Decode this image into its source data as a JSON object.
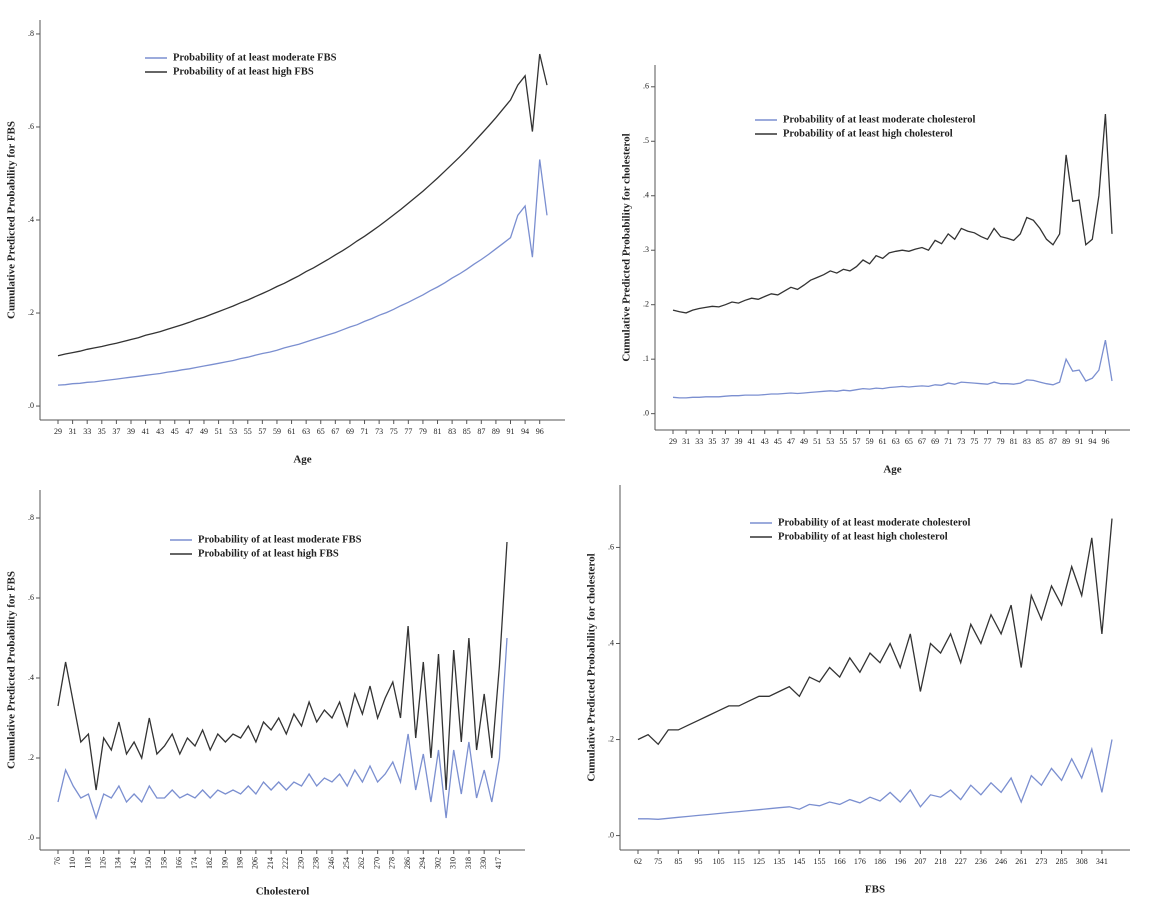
{
  "chart_data": [
    {
      "type": "line",
      "x_label": "Age",
      "y_label": "Cumulative Predicted Probability for FBS",
      "categories": [
        "29",
        null,
        "31",
        null,
        "33",
        null,
        "35",
        null,
        "37",
        null,
        "39",
        null,
        "41",
        null,
        "43",
        null,
        "45",
        null,
        "47",
        null,
        "49",
        null,
        "51",
        null,
        "53",
        null,
        "55",
        null,
        "57",
        null,
        "59",
        null,
        "61",
        null,
        "63",
        null,
        "65",
        null,
        "67",
        null,
        "69",
        null,
        "71",
        null,
        "73",
        null,
        "75",
        null,
        "77",
        null,
        "79",
        null,
        "81",
        null,
        "83",
        null,
        "85",
        null,
        "87",
        null,
        "89",
        null,
        "91",
        null,
        "94",
        null,
        "96",
        null
      ],
      "series": [
        {
          "name": "Probability of at least moderate FBS",
          "color": "#7b8fd0",
          "values": [
            0.045,
            0.046,
            0.048,
            0.049,
            0.051,
            0.052,
            0.054,
            0.056,
            0.058,
            0.06,
            0.062,
            0.064,
            0.066,
            0.068,
            0.07,
            0.073,
            0.075,
            0.078,
            0.08,
            0.083,
            0.086,
            0.089,
            0.092,
            0.095,
            0.098,
            0.102,
            0.105,
            0.109,
            0.113,
            0.116,
            0.12,
            0.125,
            0.129,
            0.133,
            0.138,
            0.143,
            0.148,
            0.153,
            0.158,
            0.164,
            0.17,
            0.175,
            0.182,
            0.188,
            0.195,
            0.201,
            0.208,
            0.216,
            0.223,
            0.231,
            0.239,
            0.248,
            0.256,
            0.265,
            0.275,
            0.284,
            0.294,
            0.305,
            0.315,
            0.326,
            0.338,
            0.35,
            0.362,
            0.41,
            0.43,
            0.32,
            0.53,
            0.41
          ]
        },
        {
          "name": "Probability of at least high FBS",
          "color": "#333333",
          "values": [
            0.108,
            0.112,
            0.115,
            0.118,
            0.122,
            0.125,
            0.128,
            0.132,
            0.135,
            0.139,
            0.143,
            0.147,
            0.152,
            0.156,
            0.16,
            0.165,
            0.17,
            0.175,
            0.18,
            0.186,
            0.191,
            0.197,
            0.203,
            0.209,
            0.215,
            0.222,
            0.228,
            0.235,
            0.242,
            0.249,
            0.257,
            0.264,
            0.272,
            0.28,
            0.289,
            0.297,
            0.306,
            0.315,
            0.325,
            0.334,
            0.344,
            0.355,
            0.365,
            0.376,
            0.387,
            0.399,
            0.411,
            0.423,
            0.436,
            0.449,
            0.462,
            0.476,
            0.49,
            0.505,
            0.52,
            0.535,
            0.551,
            0.568,
            0.585,
            0.602,
            0.62,
            0.639,
            0.658,
            0.69,
            0.71,
            0.59,
            0.757,
            0.69
          ]
        }
      ],
      "ylim": [
        -0.03,
        0.83
      ],
      "yticks": [
        {
          "value": 0,
          "label": ".0"
        },
        {
          "value": 0.2,
          "label": ".2"
        },
        {
          "value": 0.4,
          "label": ".4"
        },
        {
          "value": 0.6,
          "label": ".6"
        },
        {
          "value": 0.8,
          "label": ".8"
        }
      ]
    },
    {
      "type": "line",
      "x_label": "Age",
      "y_label": "Cumulative Predicted Probability for cholesterol",
      "categories": [
        "29",
        null,
        "31",
        null,
        "33",
        null,
        "35",
        null,
        "37",
        null,
        "39",
        null,
        "41",
        null,
        "43",
        null,
        "45",
        null,
        "47",
        null,
        "49",
        null,
        "51",
        null,
        "53",
        null,
        "55",
        null,
        "57",
        null,
        "59",
        null,
        "61",
        null,
        "63",
        null,
        "65",
        null,
        "67",
        null,
        "69",
        null,
        "71",
        null,
        "73",
        null,
        "75",
        null,
        "77",
        null,
        "79",
        null,
        "81",
        null,
        "83",
        null,
        "85",
        null,
        "87",
        null,
        "89",
        null,
        "91",
        null,
        "94",
        null,
        "96",
        null
      ],
      "series": [
        {
          "name": "Probability of at least moderate cholesterol",
          "color": "#7b8fd0",
          "values": [
            0.03,
            0.029,
            0.029,
            0.03,
            0.03,
            0.031,
            0.031,
            0.031,
            0.032,
            0.033,
            0.033,
            0.034,
            0.034,
            0.034,
            0.035,
            0.036,
            0.036,
            0.037,
            0.038,
            0.037,
            0.038,
            0.039,
            0.04,
            0.041,
            0.042,
            0.041,
            0.043,
            0.042,
            0.044,
            0.046,
            0.045,
            0.047,
            0.046,
            0.048,
            0.049,
            0.05,
            0.049,
            0.05,
            0.051,
            0.05,
            0.053,
            0.052,
            0.056,
            0.054,
            0.058,
            0.057,
            0.056,
            0.055,
            0.054,
            0.058,
            0.055,
            0.055,
            0.054,
            0.056,
            0.062,
            0.061,
            0.058,
            0.055,
            0.053,
            0.058,
            0.1,
            0.078,
            0.08,
            0.06,
            0.065,
            0.08,
            0.135,
            0.06
          ]
        },
        {
          "name": "Probability of at least high cholesterol",
          "color": "#333333",
          "values": [
            0.19,
            0.187,
            0.185,
            0.19,
            0.193,
            0.195,
            0.197,
            0.196,
            0.2,
            0.205,
            0.203,
            0.208,
            0.212,
            0.21,
            0.215,
            0.22,
            0.218,
            0.225,
            0.232,
            0.228,
            0.236,
            0.245,
            0.25,
            0.255,
            0.262,
            0.258,
            0.265,
            0.262,
            0.27,
            0.282,
            0.275,
            0.29,
            0.285,
            0.295,
            0.298,
            0.3,
            0.298,
            0.302,
            0.305,
            0.3,
            0.318,
            0.312,
            0.33,
            0.32,
            0.34,
            0.335,
            0.332,
            0.325,
            0.32,
            0.34,
            0.325,
            0.322,
            0.318,
            0.33,
            0.36,
            0.355,
            0.34,
            0.32,
            0.31,
            0.33,
            0.475,
            0.39,
            0.392,
            0.31,
            0.32,
            0.4,
            0.55,
            0.33
          ]
        }
      ],
      "ylim": [
        -0.03,
        0.64
      ],
      "yticks": [
        {
          "value": 0,
          "label": ".0"
        },
        {
          "value": 0.1,
          "label": ".1"
        },
        {
          "value": 0.2,
          "label": ".2"
        },
        {
          "value": 0.3,
          "label": ".3"
        },
        {
          "value": 0.4,
          "label": ".4"
        },
        {
          "value": 0.5,
          "label": ".5"
        },
        {
          "value": 0.6,
          "label": ".6"
        }
      ]
    },
    {
      "type": "line",
      "x_label": "Cholesterol",
      "y_label": "Cumulative Predicted Probability for FBS",
      "categories": [
        "76",
        null,
        "110",
        null,
        "118",
        null,
        "126",
        null,
        "134",
        null,
        "142",
        null,
        "150",
        null,
        "158",
        null,
        "166",
        null,
        "174",
        null,
        "182",
        null,
        "190",
        null,
        "198",
        null,
        "206",
        null,
        "214",
        null,
        "222",
        null,
        "230",
        null,
        "238",
        null,
        "246",
        null,
        "254",
        null,
        "262",
        null,
        "270",
        null,
        "278",
        null,
        "286",
        null,
        "294",
        null,
        "302",
        null,
        "310",
        null,
        "318",
        null,
        "330",
        null,
        "417",
        null
      ],
      "series": [
        {
          "name": "Probability of at least moderate FBS",
          "color": "#7b8fd0",
          "values": [
            0.09,
            0.17,
            0.13,
            0.1,
            0.11,
            0.05,
            0.11,
            0.1,
            0.13,
            0.09,
            0.11,
            0.09,
            0.13,
            0.1,
            0.1,
            0.12,
            0.1,
            0.11,
            0.1,
            0.12,
            0.1,
            0.12,
            0.11,
            0.12,
            0.11,
            0.13,
            0.11,
            0.14,
            0.12,
            0.14,
            0.12,
            0.14,
            0.13,
            0.16,
            0.13,
            0.15,
            0.14,
            0.16,
            0.13,
            0.17,
            0.14,
            0.18,
            0.14,
            0.16,
            0.19,
            0.14,
            0.26,
            0.12,
            0.21,
            0.09,
            0.22,
            0.05,
            0.22,
            0.11,
            0.24,
            0.1,
            0.17,
            0.09,
            0.2,
            0.5
          ]
        },
        {
          "name": "Probability of at least high FBS",
          "color": "#333333",
          "values": [
            0.33,
            0.44,
            0.34,
            0.24,
            0.26,
            0.12,
            0.25,
            0.22,
            0.29,
            0.21,
            0.24,
            0.2,
            0.3,
            0.21,
            0.23,
            0.26,
            0.21,
            0.25,
            0.23,
            0.27,
            0.22,
            0.26,
            0.24,
            0.26,
            0.25,
            0.28,
            0.24,
            0.29,
            0.27,
            0.3,
            0.26,
            0.31,
            0.28,
            0.34,
            0.29,
            0.32,
            0.3,
            0.34,
            0.28,
            0.36,
            0.31,
            0.38,
            0.3,
            0.35,
            0.39,
            0.3,
            0.53,
            0.25,
            0.44,
            0.2,
            0.46,
            0.12,
            0.47,
            0.24,
            0.5,
            0.22,
            0.36,
            0.2,
            0.43,
            0.74
          ]
        }
      ],
      "ylim": [
        -0.03,
        0.87
      ],
      "yticks": [
        {
          "value": 0,
          "label": ".0"
        },
        {
          "value": 0.2,
          "label": ".2"
        },
        {
          "value": 0.4,
          "label": ".4"
        },
        {
          "value": 0.6,
          "label": ".6"
        },
        {
          "value": 0.8,
          "label": ".8"
        }
      ]
    },
    {
      "type": "line",
      "x_label": "FBS",
      "y_label": "Cumulative Predicted Probability for cholesterol",
      "categories": [
        "62",
        null,
        "75",
        null,
        "85",
        null,
        "95",
        null,
        "105",
        null,
        "115",
        null,
        "125",
        null,
        "135",
        null,
        "145",
        null,
        "155",
        null,
        "166",
        null,
        "176",
        null,
        "186",
        null,
        "196",
        null,
        "207",
        null,
        "218",
        null,
        "227",
        null,
        "236",
        null,
        "246",
        null,
        "261",
        null,
        "273",
        null,
        "285",
        null,
        "308",
        null,
        "341",
        null
      ],
      "series": [
        {
          "name": "Probability of at least moderate cholesterol",
          "color": "#7b8fd0",
          "values": [
            0.035,
            0.035,
            0.034,
            0.036,
            0.038,
            0.04,
            0.042,
            0.044,
            0.046,
            0.048,
            0.05,
            0.052,
            0.054,
            0.056,
            0.058,
            0.06,
            0.055,
            0.065,
            0.062,
            0.07,
            0.065,
            0.075,
            0.068,
            0.08,
            0.072,
            0.09,
            0.07,
            0.095,
            0.06,
            0.085,
            0.08,
            0.095,
            0.075,
            0.105,
            0.085,
            0.11,
            0.09,
            0.12,
            0.07,
            0.125,
            0.105,
            0.14,
            0.115,
            0.16,
            0.12,
            0.18,
            0.09,
            0.2
          ]
        },
        {
          "name": "Probability of at least high cholesterol",
          "color": "#333333",
          "values": [
            0.2,
            0.21,
            0.19,
            0.22,
            0.22,
            0.23,
            0.24,
            0.25,
            0.26,
            0.27,
            0.27,
            0.28,
            0.29,
            0.29,
            0.3,
            0.31,
            0.29,
            0.33,
            0.32,
            0.35,
            0.33,
            0.37,
            0.34,
            0.38,
            0.36,
            0.4,
            0.35,
            0.42,
            0.3,
            0.4,
            0.38,
            0.42,
            0.36,
            0.44,
            0.4,
            0.46,
            0.42,
            0.48,
            0.35,
            0.5,
            0.45,
            0.52,
            0.48,
            0.56,
            0.5,
            0.62,
            0.42,
            0.66
          ]
        }
      ],
      "ylim": [
        -0.03,
        0.73
      ],
      "yticks": [
        {
          "value": 0,
          "label": ".0"
        },
        {
          "value": 0.2,
          "label": ".2"
        },
        {
          "value": 0.4,
          "label": ".4"
        },
        {
          "value": 0.6,
          "label": ".6"
        }
      ]
    }
  ]
}
